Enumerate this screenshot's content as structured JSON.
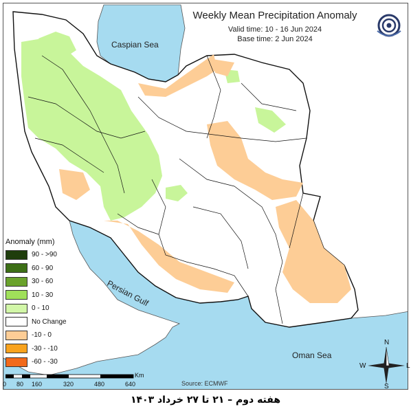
{
  "map": {
    "title": "Weekly Mean Precipitation Anomaly",
    "valid_time": "Valid time: 10 - 16 Jun 2024",
    "base_time": "Base time: 2 Jun 2024",
    "source": "Source: ECMWF",
    "caption": "هفته دوم – ۲۱ تا ۲۷ خرداد ۱۴۰۳",
    "labels": {
      "caspian": "Caspian Sea",
      "persian_gulf": "Persian Gulf",
      "oman_sea": "Oman Sea"
    },
    "colors": {
      "sea": "#a6dbf0",
      "land_outside": "#ffffff",
      "positive_0_10": "#c8f59a",
      "positive_10_30": "#a8e06a",
      "negative_10_0": "#fdcd96",
      "border": "#111111"
    }
  },
  "legend": {
    "title": "Anomaly (mm)",
    "items": [
      {
        "label": "90 - >90",
        "color": "#1f3d0c"
      },
      {
        "label": "60 - 90",
        "color": "#3d6f16"
      },
      {
        "label": "30 - 60",
        "color": "#6aa22c"
      },
      {
        "label": "10 - 30",
        "color": "#a0e05a"
      },
      {
        "label": "0 - 10",
        "color": "#d2f7a8"
      },
      {
        "label": "No Change",
        "color": "#ffffff"
      },
      {
        "label": "-10 - 0",
        "color": "#fdcd96"
      },
      {
        "label": "-30 - -10",
        "color": "#f9a31e"
      },
      {
        "label": "-60 - -30",
        "color": "#f26a1b"
      }
    ]
  },
  "scale_bar": {
    "unit": "Km",
    "ticks": [
      "0",
      "80",
      "160",
      "320",
      "480",
      "640"
    ]
  },
  "compass": {
    "n": "N",
    "s": "S",
    "e": "L",
    "w": "W"
  },
  "logo": {
    "icon": "meteorology-org-logo"
  }
}
